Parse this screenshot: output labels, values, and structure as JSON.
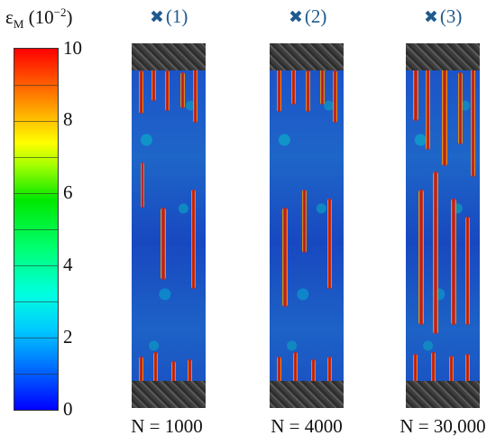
{
  "colorbar": {
    "title_main": "ε",
    "title_sub": "M",
    "title_paren_open": " (10",
    "title_sup": "−2",
    "title_paren_close": ")",
    "ticks": [
      "0",
      "2",
      "4",
      "6",
      "8",
      "10"
    ],
    "range": [
      0,
      10
    ],
    "colors": [
      "#0000ff",
      "#00c8ff",
      "#00ff70",
      "#ffff00",
      "#ff6000",
      "#ff0000"
    ]
  },
  "specimens": [
    {
      "marker": "(1)",
      "label": "N = 1000"
    },
    {
      "marker": "(2)",
      "label": "N = 4000"
    },
    {
      "marker": "(3)",
      "label": "N = 30,000"
    }
  ],
  "marker_icon": "x-marker-icon",
  "marker_color": "#1f5a8e"
}
